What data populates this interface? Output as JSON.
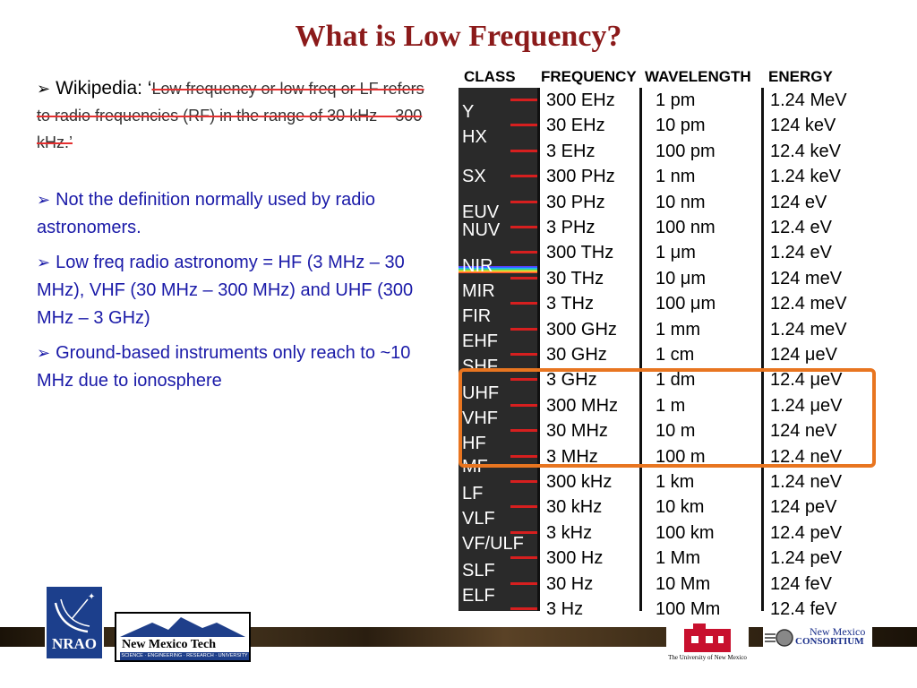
{
  "title": "What is Low Frequency?",
  "bullets": {
    "wiki_label": "Wikipedia: ‘",
    "wiki_quote": "Low frequency or low freq or LF refers to radio frequencies (RF) in the range of 30 kHz – 300 kHz.’",
    "items": [
      "Not the definition normally used by radio astronomers.",
      "Low freq radio astronomy = HF (3 MHz – 30 MHz), VHF (30 MHz – 300 MHz) and UHF (300 MHz – 3 GHz)",
      "Ground-based instruments only reach to ~10 MHz due to ionosphere"
    ]
  },
  "spectrum": {
    "headers": [
      "CLASS",
      "FREQUENCY",
      "WAVELENGTH",
      "ENERGY"
    ],
    "classes": [
      "Y",
      "HX",
      "SX",
      "EUV",
      "NUV",
      "NIR",
      "MIR",
      "FIR",
      "EHF",
      "SHF",
      "UHF",
      "VHF",
      "HF",
      "MF",
      "LF",
      "VLF",
      "VF/ULF",
      "SLF",
      "ELF"
    ],
    "rows": [
      [
        "300 EHz",
        "1 pm",
        "1.24 MeV"
      ],
      [
        "30 EHz",
        "10 pm",
        "124 keV"
      ],
      [
        "3 EHz",
        "100 pm",
        "12.4 keV"
      ],
      [
        "300 PHz",
        "1 nm",
        "1.24 keV"
      ],
      [
        "30 PHz",
        "10 nm",
        "124 eV"
      ],
      [
        "3 PHz",
        "100 nm",
        "12.4 eV"
      ],
      [
        "300 THz",
        "1 μm",
        "1.24 eV"
      ],
      [
        "30 THz",
        "10 μm",
        "124 meV"
      ],
      [
        "3 THz",
        "100 μm",
        "12.4 meV"
      ],
      [
        "300 GHz",
        "1 mm",
        "1.24 meV"
      ],
      [
        "30 GHz",
        "1 cm",
        "124 μeV"
      ],
      [
        "3 GHz",
        "1 dm",
        "12.4 μeV"
      ],
      [
        "300 MHz",
        "1 m",
        "1.24 μeV"
      ],
      [
        "30 MHz",
        "10 m",
        "124 neV"
      ],
      [
        "3 MHz",
        "100 m",
        "12.4 neV"
      ],
      [
        "300 kHz",
        "1 km",
        "1.24 neV"
      ],
      [
        "30 kHz",
        "10 km",
        "124 peV"
      ],
      [
        "3 kHz",
        "100 km",
        "12.4 peV"
      ],
      [
        "300 Hz",
        "1 Mm",
        "1.24 peV"
      ],
      [
        "30 Hz",
        "10 Mm",
        "124 feV"
      ],
      [
        "3 Hz",
        "100 Mm",
        "12.4 feV"
      ]
    ],
    "highlight_color": "#e87520"
  },
  "footer": {
    "nrao": "NRAO",
    "nmt_name": "New Mexico Tech",
    "nmt_sub": "SCIENCE · ENGINEERING · RESEARCH · UNIVERSITY",
    "unm": "The University of New Mexico",
    "nmc_line1": "New Mexico",
    "nmc_line2": "CONSORTIUM"
  }
}
